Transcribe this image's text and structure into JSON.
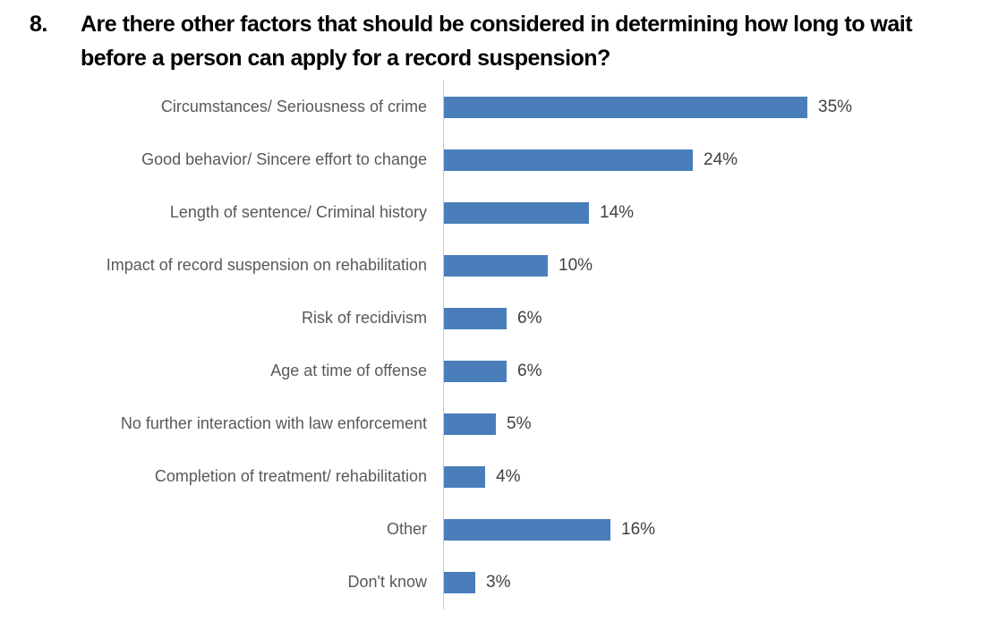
{
  "question": {
    "number": "8.",
    "text": "Are there other factors that should be considered in determining how long to wait before a person can apply for a record suspension?"
  },
  "chart_data": {
    "type": "bar",
    "orientation": "horizontal",
    "title": "",
    "xlabel": "",
    "ylabel": "",
    "categories": [
      "Circumstances/ Seriousness of crime",
      "Good behavior/ Sincere effort to change",
      "Length of sentence/ Criminal history",
      "Impact of record suspension on rehabilitation",
      "Risk of recidivism",
      "Age at time of offense",
      "No further interaction with law enforcement",
      "Completion of treatment/ rehabilitation",
      "Other",
      "Don't know"
    ],
    "values": [
      35,
      24,
      14,
      10,
      6,
      6,
      5,
      4,
      16,
      3
    ],
    "value_labels": [
      "35%",
      "24%",
      "14%",
      "10%",
      "6%",
      "6%",
      "5%",
      "4%",
      "16%",
      "3%"
    ],
    "xlim": [
      0,
      40
    ],
    "grid": false,
    "legend": false,
    "data_label_position": "outside-end",
    "bar_color": "#4A7EBB",
    "axis_line_color": "#C9C9C9",
    "category_label_color": "#595959",
    "value_label_color": "#404040",
    "title_color": "#000000"
  }
}
